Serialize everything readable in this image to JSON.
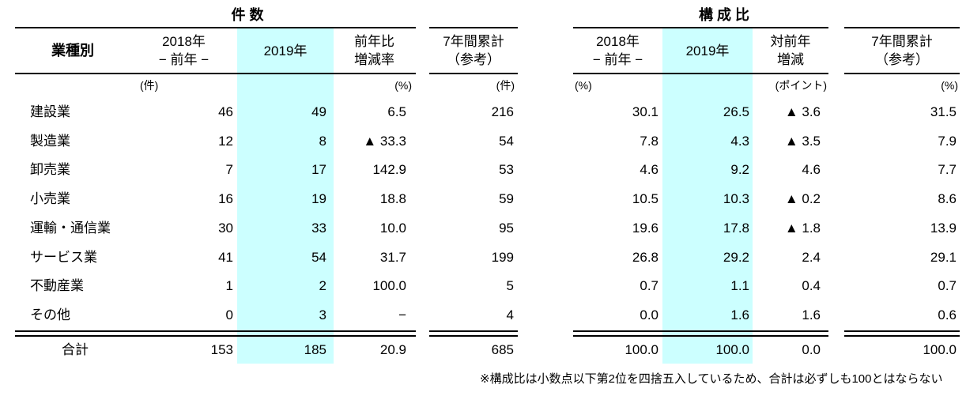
{
  "colors": {
    "highlight": "#ccffff",
    "text": "#000000",
    "rule": "#000000"
  },
  "titles": {
    "left": "件 数",
    "right": "構 成 比"
  },
  "header": {
    "industry": "業種別",
    "y2018": "2018年",
    "y2018_sub": "− 前年 −",
    "y2019": "2019年",
    "left_change_1": "前年比",
    "left_change_2": "増減率",
    "right_change_1": "対前年",
    "right_change_2": "増減",
    "cum_1": "7年間累計",
    "cum_2": "（参考）"
  },
  "units": {
    "left_2018": "(件)",
    "left_change": "(%)",
    "left_cum": "(件)",
    "right_2018": "(%)",
    "right_change": "(ポイント)",
    "right_cum": "(%)"
  },
  "rows": [
    {
      "label": "建設業",
      "c2018": "46",
      "c2019": "49",
      "cchg": "6.5",
      "ccum": "216",
      "r2018": "30.1",
      "r2019": "26.5",
      "rchg": "▲ 3.6",
      "rcum": "31.5"
    },
    {
      "label": "製造業",
      "c2018": "12",
      "c2019": "8",
      "cchg": "▲ 33.3",
      "ccum": "54",
      "r2018": "7.8",
      "r2019": "4.3",
      "rchg": "▲ 3.5",
      "rcum": "7.9"
    },
    {
      "label": "卸売業",
      "c2018": "7",
      "c2019": "17",
      "cchg": "142.9",
      "ccum": "53",
      "r2018": "4.6",
      "r2019": "9.2",
      "rchg": "4.6",
      "rcum": "7.7"
    },
    {
      "label": "小売業",
      "c2018": "16",
      "c2019": "19",
      "cchg": "18.8",
      "ccum": "59",
      "r2018": "10.5",
      "r2019": "10.3",
      "rchg": "▲ 0.2",
      "rcum": "8.6"
    },
    {
      "label": "運輸・通信業",
      "c2018": "30",
      "c2019": "33",
      "cchg": "10.0",
      "ccum": "95",
      "r2018": "19.6",
      "r2019": "17.8",
      "rchg": "▲ 1.8",
      "rcum": "13.9"
    },
    {
      "label": "サービス業",
      "c2018": "41",
      "c2019": "54",
      "cchg": "31.7",
      "ccum": "199",
      "r2018": "26.8",
      "r2019": "29.2",
      "rchg": "2.4",
      "rcum": "29.1"
    },
    {
      "label": "不動産業",
      "c2018": "1",
      "c2019": "2",
      "cchg": "100.0",
      "ccum": "5",
      "r2018": "0.7",
      "r2019": "1.1",
      "rchg": "0.4",
      "rcum": "0.7"
    },
    {
      "label": "その他",
      "c2018": "0",
      "c2019": "3",
      "cchg": "−",
      "ccum": "4",
      "r2018": "0.0",
      "r2019": "1.6",
      "rchg": "1.6",
      "rcum": "0.6"
    }
  ],
  "total": {
    "label": "合計",
    "c2018": "153",
    "c2019": "185",
    "cchg": "20.9",
    "ccum": "685",
    "r2018": "100.0",
    "r2019": "100.0",
    "rchg": "0.0",
    "rcum": "100.0"
  },
  "footnote": "※構成比は小数点以下第2位を四捨五入しているため、合計は必ずしも100とはならない"
}
